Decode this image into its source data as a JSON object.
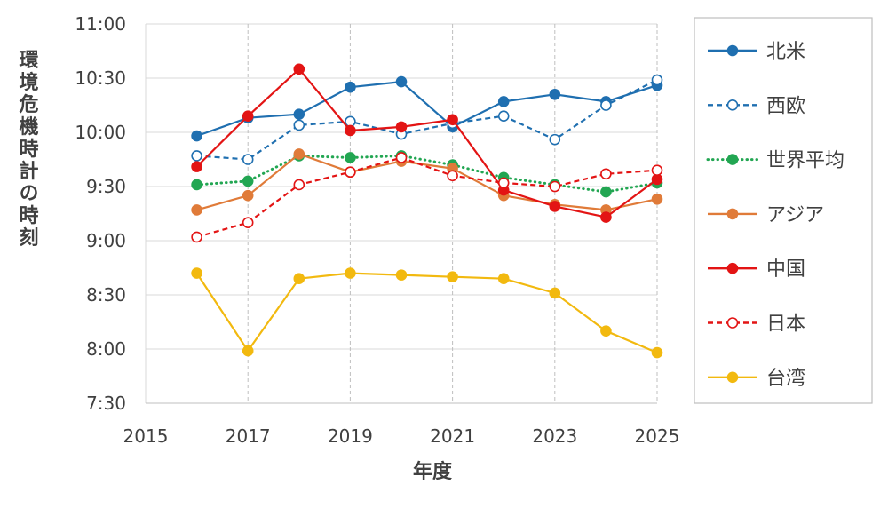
{
  "chart_data": {
    "type": "line",
    "xlabel": "年度",
    "ylabel": "環境危機時計の時刻",
    "xlim": [
      2015,
      2025
    ],
    "ylim": [
      450,
      660
    ],
    "xticks": [
      2015,
      2017,
      2019,
      2021,
      2023,
      2025
    ],
    "yticks": [
      450,
      480,
      510,
      540,
      570,
      600,
      630,
      660
    ],
    "ytick_labels": [
      "7:30",
      "8:00",
      "8:30",
      "9:00",
      "9:30",
      "10:00",
      "10:30",
      "11:00"
    ],
    "grid": "vertical dashed at labeled years",
    "legend_position": "right",
    "x": [
      2016,
      2017,
      2018,
      2019,
      2020,
      2021,
      2022,
      2023,
      2024,
      2025
    ],
    "series": [
      {
        "name": "北米",
        "color": "#1f6fb0",
        "dash": "solid",
        "marker": "filled",
        "values": [
          598,
          608,
          610,
          625,
          628,
          603,
          617,
          621,
          617,
          626
        ]
      },
      {
        "name": "西欧",
        "color": "#1f6fb0",
        "dash": "dashed",
        "marker": "open",
        "values": [
          587,
          585,
          604,
          606,
          599,
          605,
          609,
          596,
          615,
          629
        ]
      },
      {
        "name": "世界平均",
        "color": "#22a652",
        "dash": "dotted",
        "marker": "filled",
        "values": [
          571,
          573,
          587,
          586,
          587,
          582,
          575,
          571,
          567,
          572
        ]
      },
      {
        "name": "アジア",
        "color": "#e07b39",
        "dash": "solid",
        "marker": "filled",
        "values": [
          557,
          565,
          588,
          578,
          584,
          580,
          565,
          560,
          557,
          563
        ]
      },
      {
        "name": "中国",
        "color": "#e31414",
        "dash": "solid",
        "marker": "filled",
        "values": [
          581,
          609,
          635,
          601,
          603,
          607,
          568,
          559,
          553,
          574
        ]
      },
      {
        "name": "日本",
        "color": "#e31414",
        "dash": "dashed",
        "marker": "open",
        "values": [
          542,
          550,
          571,
          578,
          586,
          576,
          572,
          570,
          577,
          579
        ]
      },
      {
        "name": "台湾",
        "color": "#f2b90f",
        "dash": "solid",
        "marker": "filled",
        "values": [
          522,
          479,
          519,
          522,
          521,
          520,
          519,
          511,
          490,
          478
        ]
      }
    ]
  }
}
